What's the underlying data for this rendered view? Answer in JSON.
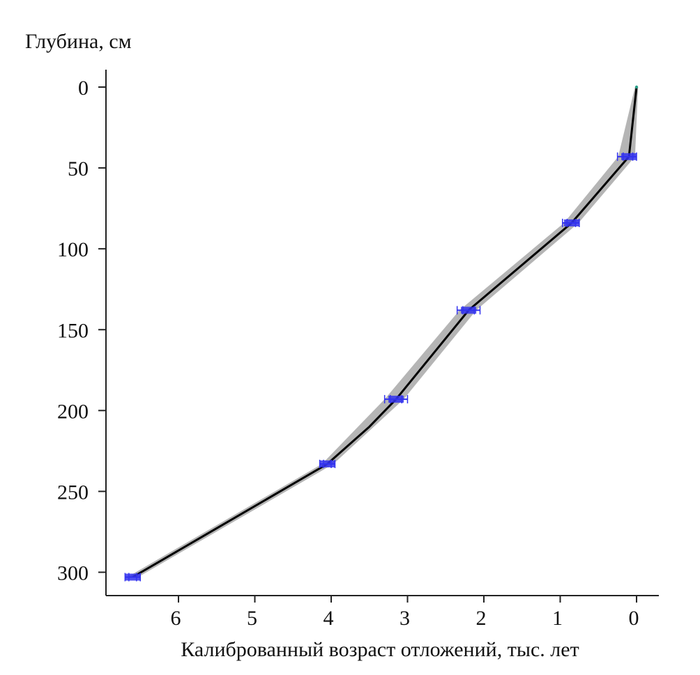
{
  "chart_data": {
    "type": "line",
    "title": "",
    "ylabel": "Глубина, см",
    "xlabel": "Калиброванный возраст отложений, тыс. лет",
    "xlim": [
      6.9,
      -0.3
    ],
    "ylim": [
      320,
      -12
    ],
    "x_inverted": true,
    "y_inverted": true,
    "x_ticks": [
      6,
      5,
      4,
      3,
      2,
      1,
      0
    ],
    "y_ticks": [
      0,
      50,
      100,
      150,
      200,
      250,
      300
    ],
    "grid": false,
    "legend": "none",
    "series": [
      {
        "kind": "age_model_median",
        "color": "#000000",
        "points": [
          {
            "age": 0.0,
            "depth": 0
          },
          {
            "age": 0.1,
            "depth": 43
          },
          {
            "age": 0.85,
            "depth": 84
          },
          {
            "age": 2.2,
            "depth": 138
          },
          {
            "age": 3.15,
            "depth": 193
          },
          {
            "age": 3.5,
            "depth": 210
          },
          {
            "age": 4.05,
            "depth": 233
          },
          {
            "age": 6.6,
            "depth": 303
          }
        ]
      },
      {
        "kind": "confidence_envelope",
        "color": "#b5b5b5",
        "points": [
          {
            "depth": 0,
            "min_age": -0.02,
            "max_age": 0.02
          },
          {
            "depth": 43,
            "min_age": 0.02,
            "max_age": 0.24
          },
          {
            "depth": 84,
            "min_age": 0.76,
            "max_age": 0.95
          },
          {
            "depth": 138,
            "min_age": 2.1,
            "max_age": 2.32
          },
          {
            "depth": 193,
            "min_age": 3.05,
            "max_age": 3.3
          },
          {
            "depth": 233,
            "min_age": 3.97,
            "max_age": 4.12
          },
          {
            "depth": 303,
            "min_age": 6.53,
            "max_age": 6.67
          }
        ]
      }
    ],
    "dated_samples": {
      "color": "#3333ee",
      "points": [
        {
          "age": 0.1,
          "depth": 43,
          "min_age": 0.0,
          "max_age": 0.25
        },
        {
          "age": 0.85,
          "depth": 84,
          "min_age": 0.75,
          "max_age": 0.97
        },
        {
          "age": 2.2,
          "depth": 138,
          "min_age": 2.05,
          "max_age": 2.35
        },
        {
          "age": 3.15,
          "depth": 193,
          "min_age": 3.0,
          "max_age": 3.3
        },
        {
          "age": 4.05,
          "depth": 233,
          "min_age": 3.95,
          "max_age": 4.15
        },
        {
          "age": 6.6,
          "depth": 303,
          "min_age": 6.5,
          "max_age": 6.7
        }
      ]
    }
  }
}
